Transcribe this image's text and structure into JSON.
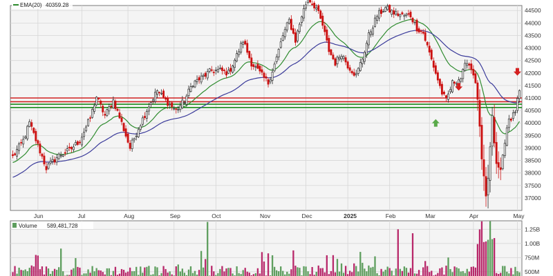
{
  "chart_data": [
    {
      "type": "candlestick",
      "panel": "price",
      "legend": {
        "label": "EMA(20)",
        "value": "40359.28",
        "color": "#2e8b2e"
      },
      "ylim": [
        36500,
        44700
      ],
      "y_ticks": [
        37000,
        37500,
        38000,
        38500,
        39000,
        39500,
        40000,
        40500,
        41000,
        41500,
        42000,
        42500,
        43000,
        43500,
        44000,
        44500
      ],
      "x_ticks": [
        {
          "label": "Jun",
          "index": 12,
          "bold": false
        },
        {
          "label": "Jul",
          "index": 33,
          "bold": false
        },
        {
          "label": "Aug",
          "index": 55,
          "bold": false
        },
        {
          "label": "Sep",
          "index": 77,
          "bold": false
        },
        {
          "label": "Oct",
          "index": 97,
          "bold": false
        },
        {
          "label": "Nov",
          "index": 120,
          "bold": false
        },
        {
          "label": "Dec",
          "index": 140,
          "bold": false
        },
        {
          "label": "2025",
          "index": 160,
          "bold": true
        },
        {
          "label": "Feb",
          "index": 180,
          "bold": false
        },
        {
          "label": "Mar",
          "index": 199,
          "bold": false
        },
        {
          "label": "Apr",
          "index": 220,
          "bold": false
        },
        {
          "label": "May",
          "index": 241,
          "bold": false
        }
      ],
      "n_bars": 243,
      "close_anchors": [
        [
          0,
          38650
        ],
        [
          5,
          39300
        ],
        [
          8,
          40000
        ],
        [
          12,
          39100
        ],
        [
          16,
          38200
        ],
        [
          22,
          38700
        ],
        [
          27,
          38900
        ],
        [
          32,
          39300
        ],
        [
          37,
          40200
        ],
        [
          40,
          41050
        ],
        [
          44,
          40300
        ],
        [
          48,
          40900
        ],
        [
          52,
          40000
        ],
        [
          56,
          39000
        ],
        [
          60,
          39800
        ],
        [
          65,
          40700
        ],
        [
          69,
          41300
        ],
        [
          73,
          40900
        ],
        [
          78,
          40500
        ],
        [
          82,
          40900
        ],
        [
          86,
          41600
        ],
        [
          90,
          41800
        ],
        [
          95,
          42100
        ],
        [
          99,
          42100
        ],
        [
          103,
          42000
        ],
        [
          107,
          42700
        ],
        [
          110,
          43300
        ],
        [
          114,
          42400
        ],
        [
          118,
          42000
        ],
        [
          122,
          41600
        ],
        [
          126,
          42600
        ],
        [
          129,
          43500
        ],
        [
          132,
          44100
        ],
        [
          135,
          43300
        ],
        [
          138,
          44300
        ],
        [
          141,
          45000
        ],
        [
          145,
          44600
        ],
        [
          148,
          43900
        ],
        [
          151,
          42900
        ],
        [
          154,
          42400
        ],
        [
          157,
          42800
        ],
        [
          160,
          42300
        ],
        [
          164,
          41900
        ],
        [
          167,
          42600
        ],
        [
          170,
          43500
        ],
        [
          174,
          44300
        ],
        [
          178,
          44600
        ],
        [
          182,
          44400
        ],
        [
          186,
          44300
        ],
        [
          190,
          44300
        ],
        [
          193,
          43800
        ],
        [
          196,
          43600
        ],
        [
          199,
          42800
        ],
        [
          202,
          42000
        ],
        [
          205,
          41200
        ],
        [
          207,
          40900
        ],
        [
          210,
          41600
        ],
        [
          214,
          41800
        ],
        [
          217,
          42500
        ],
        [
          220,
          42000
        ],
        [
          222,
          41000
        ],
        [
          224,
          38500
        ],
        [
          226,
          37000
        ],
        [
          227,
          37800
        ],
        [
          229,
          40200
        ],
        [
          231,
          38300
        ],
        [
          233,
          38100
        ],
        [
          235,
          39300
        ],
        [
          237,
          40100
        ],
        [
          240,
          40500
        ],
        [
          242,
          41300
        ]
      ],
      "series": [
        {
          "name": "EMA(20)",
          "color": "#2e8b2e",
          "period": 20
        },
        {
          "name": "",
          "color": "#3a3a9a",
          "period": 50
        }
      ],
      "horizontal_lines": [
        {
          "value": 41000,
          "color": "#d02020"
        },
        {
          "value": 40850,
          "color": "#d02020"
        },
        {
          "value": 40750,
          "color": "#1a8a1a"
        },
        {
          "value": 40620,
          "color": "#1a8a1a"
        }
      ],
      "annotations": [
        {
          "type": "arrow-up",
          "color": "#5aaa4a",
          "x_index": 202,
          "y_value": 40100
        },
        {
          "type": "arrow-down",
          "color": "#d42020",
          "x_index": 213,
          "y_value": 41350
        },
        {
          "type": "arrow-down",
          "color": "#d42020",
          "x_index": 241,
          "y_value": 41950
        }
      ],
      "colors": {
        "up": "#2a2a2a",
        "down": "#cc1111"
      }
    },
    {
      "type": "bar",
      "panel": "volume",
      "legend": {
        "label": "Volume",
        "value": "589,481,728"
      },
      "ylim": [
        400000000,
        1400000000
      ],
      "y_ticks": [
        {
          "label": "1.25B",
          "value": 1250000000
        },
        {
          "label": "1.00B",
          "value": 1000000000
        },
        {
          "label": "750M",
          "value": 750000000
        },
        {
          "label": "500M",
          "value": 500000000
        }
      ],
      "colors": {
        "up": "#5e9e5e",
        "down": "#b8286a"
      }
    }
  ]
}
